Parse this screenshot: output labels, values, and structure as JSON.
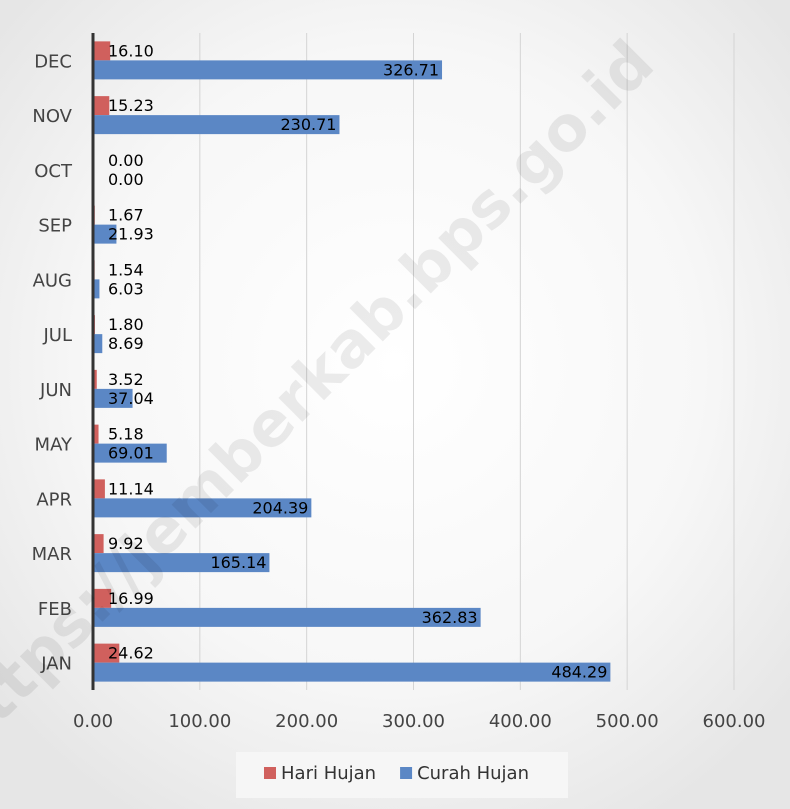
{
  "chart_data": {
    "type": "bar",
    "orientation": "horizontal",
    "categories": [
      "JAN",
      "FEB",
      "MAR",
      "APR",
      "MAY",
      "JUN",
      "JUL",
      "AUG",
      "SEP",
      "OCT",
      "NOV",
      "DEC"
    ],
    "series": [
      {
        "name": "Hari Hujan",
        "color": "#d0605d",
        "values": [
          24.62,
          16.99,
          9.92,
          11.14,
          5.18,
          3.52,
          1.8,
          1.54,
          1.67,
          0.0,
          15.23,
          16.1
        ],
        "value_labels": [
          "24.62",
          "16.99",
          "9.92",
          "11.14",
          "5.18",
          "3.52",
          "1.80",
          "1.54",
          "1.67",
          "0.00",
          "15.23",
          "16.10"
        ]
      },
      {
        "name": "Curah Hujan",
        "color": "#5b87c5",
        "values": [
          484.29,
          362.83,
          165.14,
          204.39,
          69.01,
          37.04,
          8.69,
          6.03,
          21.93,
          0.0,
          230.71,
          326.71
        ],
        "value_labels": [
          "484.29",
          "362.83",
          "165.14",
          "204.39",
          "69.01",
          "37.04",
          "8.69",
          "6.03",
          "21.93",
          "0.00",
          "230.71",
          "326.71"
        ]
      }
    ],
    "xlim": [
      0,
      600
    ],
    "xticks": [
      {
        "value": 0,
        "label": "0.00"
      },
      {
        "value": 100,
        "label": "100.00"
      },
      {
        "value": 200,
        "label": "200.00"
      },
      {
        "value": 300,
        "label": "300.00"
      },
      {
        "value": 400,
        "label": "400.00"
      },
      {
        "value": 500,
        "label": "500.00"
      },
      {
        "value": 600,
        "label": "600.00"
      }
    ],
    "grid": true,
    "legend": "bottom",
    "watermark": "https://jemberkab.bps.go.id"
  }
}
